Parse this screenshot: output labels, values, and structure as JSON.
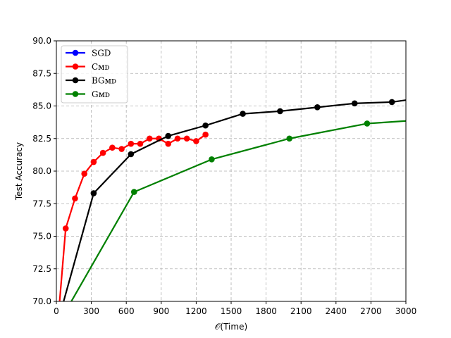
{
  "chart_data": {
    "type": "line",
    "xlabel": "𝒪(Time)",
    "ylabel": "Test Accuracy",
    "xlim": [
      0,
      3000
    ],
    "ylim": [
      70,
      90
    ],
    "xticks": [
      0,
      300,
      600,
      900,
      1200,
      1500,
      1800,
      2100,
      2400,
      2700,
      3000
    ],
    "yticks": [
      70.0,
      72.5,
      75.0,
      77.5,
      80.0,
      82.5,
      85.0,
      87.5,
      90.0
    ],
    "xtick_labels": [
      "0",
      "300",
      "600",
      "900",
      "1200",
      "1500",
      "1800",
      "2100",
      "2400",
      "2700",
      "3000"
    ],
    "ytick_labels": [
      "70.0",
      "72.5",
      "75.0",
      "77.5",
      "80.0",
      "82.5",
      "85.0",
      "87.5",
      "90.0"
    ],
    "grid": true,
    "legend_position": "upper-left",
    "series": [
      {
        "name": "SGD",
        "color": "#0000ff",
        "x": [],
        "y": []
      },
      {
        "name": "Cᴍᴅ",
        "color": "#ff0000",
        "x": [
          0,
          80,
          160,
          240,
          320,
          400,
          480,
          560,
          640,
          720,
          800,
          880,
          960,
          1040,
          1120,
          1200,
          1280
        ],
        "y": [
          67.0,
          75.6,
          77.9,
          79.8,
          80.7,
          81.4,
          81.8,
          81.7,
          82.1,
          82.1,
          82.5,
          82.5,
          82.1,
          82.5,
          82.5,
          82.3,
          82.8
        ]
      },
      {
        "name": "BGᴍᴅ",
        "color": "#000000",
        "x": [
          0,
          320,
          640,
          960,
          1280,
          1600,
          1920,
          2240,
          2560,
          2880,
          3000
        ],
        "y": [
          68.0,
          78.3,
          81.3,
          82.7,
          83.5,
          84.4,
          84.6,
          84.9,
          85.2,
          85.3,
          85.45
        ]
      },
      {
        "name": "Gᴍᴅ",
        "color": "#008000",
        "x": [
          0,
          667,
          1333,
          2000,
          2667,
          3000
        ],
        "y": [
          68.0,
          78.4,
          80.9,
          82.5,
          83.65,
          83.85
        ]
      }
    ]
  }
}
